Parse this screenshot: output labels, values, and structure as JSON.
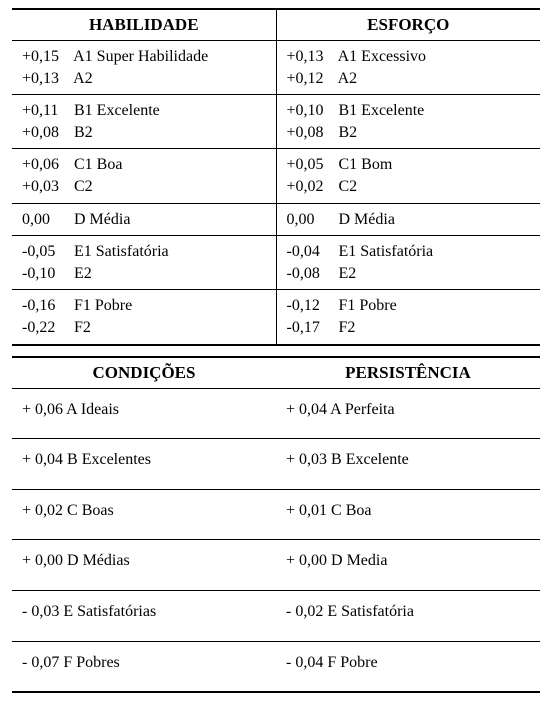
{
  "table1": {
    "headers": [
      "HABILIDADE",
      "ESFORÇO"
    ],
    "rows": [
      {
        "left": [
          {
            "val": "+0,15",
            "label": "A1 Super Habilidade"
          },
          {
            "val": "+0,13",
            "label": "A2"
          }
        ],
        "right": [
          {
            "val": "+0,13",
            "label": "A1 Excessivo"
          },
          {
            "val": "+0,12",
            "label": "A2"
          }
        ]
      },
      {
        "left": [
          {
            "val": "+0,11",
            "label": "B1 Excelente"
          },
          {
            "val": "+0,08",
            "label": "B2"
          }
        ],
        "right": [
          {
            "val": "+0,10",
            "label": "B1 Excelente"
          },
          {
            "val": "+0,08",
            "label": "B2"
          }
        ]
      },
      {
        "left": [
          {
            "val": "+0,06",
            "label": "C1 Boa"
          },
          {
            "val": "+0,03",
            "label": "C2"
          }
        ],
        "right": [
          {
            "val": "+0,05",
            "label": "C1 Bom"
          },
          {
            "val": "+0,02",
            "label": "C2"
          }
        ]
      },
      {
        "left": [
          {
            "val": "0,00",
            "label": " D   Média"
          }
        ],
        "right": [
          {
            "val": "0,00",
            "label": " D   Média"
          }
        ]
      },
      {
        "left": [
          {
            "val": "-0,05",
            "label": "E1 Satisfatória"
          },
          {
            "val": "-0,10",
            "label": "E2"
          }
        ],
        "right": [
          {
            "val": "-0,04",
            "label": "E1 Satisfatória"
          },
          {
            "val": "-0,08",
            "label": "E2"
          }
        ]
      },
      {
        "left": [
          {
            "val": "-0,16",
            "label": "F1 Pobre"
          },
          {
            "val": "-0,22",
            "label": "F2"
          }
        ],
        "right": [
          {
            "val": "-0,12",
            "label": "F1 Pobre"
          },
          {
            "val": "-0,17",
            "label": "F2"
          }
        ]
      }
    ]
  },
  "table2": {
    "headers": [
      "CONDIÇÕES",
      "PERSISTÊNCIA"
    ],
    "rows": [
      {
        "left": {
          "val": "+ 0,06",
          "label": "A  Ideais"
        },
        "right": {
          "val": "+ 0,04",
          "label": "A Perfeita"
        }
      },
      {
        "left": {
          "val": "+ 0,04",
          "label": "B Excelentes"
        },
        "right": {
          "val": "+ 0,03",
          "label": "B Excelente"
        }
      },
      {
        "left": {
          "val": "+ 0,02",
          "label": "C Boas"
        },
        "right": {
          "val": "+ 0,01",
          "label": "C Boa"
        }
      },
      {
        "left": {
          "val": "+ 0,00",
          "label": "D Médias"
        },
        "right": {
          "val": "+ 0,00",
          "label": "D Media"
        }
      },
      {
        "left": {
          "val": "-  0,03",
          "label": "E Satisfatórias"
        },
        "right": {
          "val": "- 0,02",
          "label": " E Satisfatória"
        }
      },
      {
        "left": {
          "val": "- 0,07",
          "label": "F Pobres"
        },
        "right": {
          "val": "- 0,04",
          "label": "F Pobre"
        }
      }
    ]
  }
}
